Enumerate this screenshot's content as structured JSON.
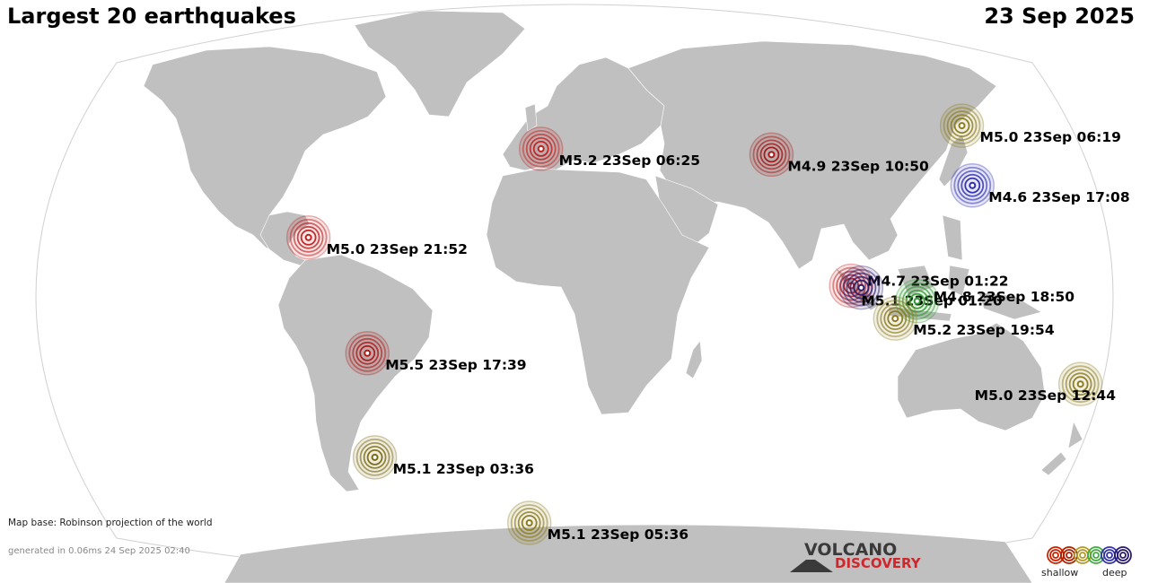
{
  "title": "Largest 20 earthquakes",
  "date": "23 Sep 2025",
  "map_base_note": "Map base: Robinson projection of the world",
  "generated_note": "generated in 0.06ms 24 Sep 2025 02:40",
  "brand": {
    "line1": "VOLCANO",
    "line2": "DISCOVERY"
  },
  "legend": {
    "shallow_label": "shallow",
    "deep_label": "deep",
    "depth_colors": [
      "#cc2200",
      "#aa2200",
      "#b59a2a",
      "#44aa44",
      "#3333aa",
      "#2a1a6a"
    ]
  },
  "colors": {
    "land": "#c0c0c0",
    "ocean": "#ffffff",
    "label": "#000000"
  },
  "quakes": [
    {
      "label": "M5.0 23Sep 06:19",
      "lon": 142.6,
      "lat": 43.0,
      "color": "#8a7a1a"
    },
    {
      "label": "M5.2 23Sep 06:25",
      "lon": -12.5,
      "lat": 37.0,
      "color": "#c02020"
    },
    {
      "label": "M4.9 23Sep 10:50",
      "lon": 71.0,
      "lat": 35.5,
      "color": "#a51515"
    },
    {
      "label": "M4.6 23Sep 17:08",
      "lon": 141.5,
      "lat": 27.5,
      "color": "#2b2bb0"
    },
    {
      "label": "M5.0 23Sep 21:52",
      "lon": -93.5,
      "lat": 14.0,
      "color": "#c02020"
    },
    {
      "label": "M4.7 23Sep 01:22",
      "lon": 96.0,
      "lat": 1.5,
      "color": "#c02020"
    },
    {
      "label": "M5.1 23Sep 01:20",
      "lon": 99.5,
      "lat": 1.0,
      "color": "#2a1a6a"
    },
    {
      "label": "M4.8 23Sep 18:50",
      "lon": 119.0,
      "lat": -2.5,
      "color": "#2e9a2e"
    },
    {
      "label": "M5.2 23Sep 19:54",
      "lon": 111.5,
      "lat": -7.0,
      "color": "#8a7a1a"
    },
    {
      "label": "M5.5 23Sep 17:39",
      "lon": -73.0,
      "lat": -16.0,
      "color": "#b01818"
    },
    {
      "label": "M5.0 23Sep 12:44",
      "lon": 179.0,
      "lat": -24.0,
      "color": "#8a7a1a"
    },
    {
      "label": "M5.1 23Sep 03:36",
      "lon": -74.0,
      "lat": -43.0,
      "color": "#7a6a10"
    },
    {
      "label": "M5.1 23Sep 05:36",
      "lon": -18.0,
      "lat": -60.0,
      "color": "#8a7a1a"
    }
  ]
}
